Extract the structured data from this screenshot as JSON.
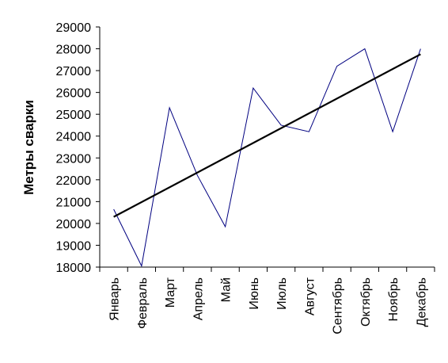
{
  "chart_data": {
    "type": "line",
    "ylabel": "Метры сварки",
    "xlabel": "",
    "ylim": [
      18000,
      29000
    ],
    "ytick_step": 1000,
    "grid": false,
    "legend": "none",
    "categories": [
      "Январь",
      "Февраль",
      "Март",
      "Апрель",
      "Май",
      "Июнь",
      "Июль",
      "Август",
      "Сентябрь",
      "Октябрь",
      "Ноябрь",
      "Декабрь"
    ],
    "series": [
      {
        "values": [
          20650,
          18050,
          25300,
          22200,
          19850,
          26200,
          24500,
          24200,
          27200,
          28000,
          24200,
          28000
        ],
        "color": "#000080"
      }
    ],
    "trendline": {
      "type": "linear",
      "start": 20300,
      "end": 27750,
      "color": "#000000"
    }
  }
}
